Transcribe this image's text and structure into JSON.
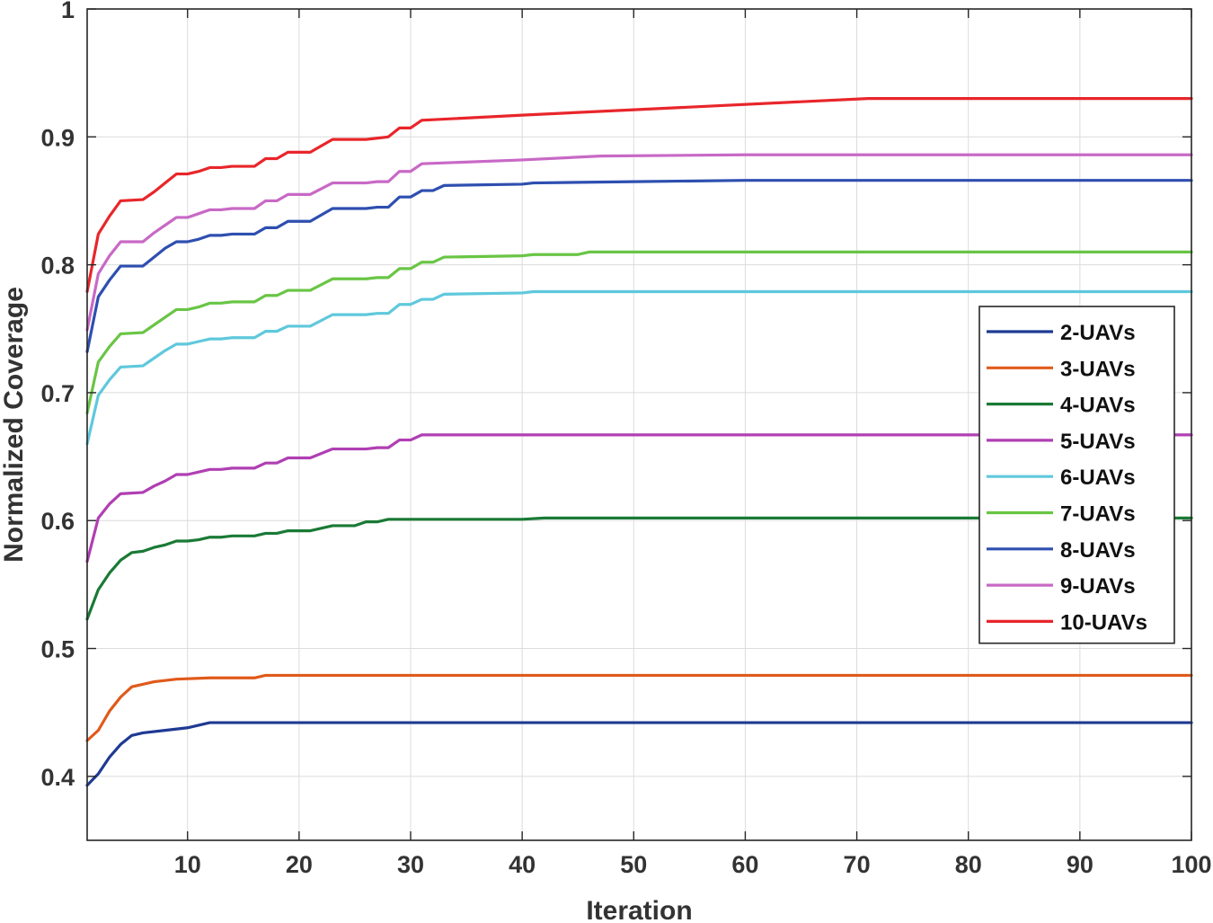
{
  "chart_data": {
    "type": "line",
    "title": "",
    "xlabel": "Iteration",
    "ylabel": "Normalized Coverage",
    "xlim": [
      1,
      100
    ],
    "ylim": [
      0.35,
      1.0
    ],
    "xticks": [
      10,
      20,
      30,
      40,
      50,
      60,
      70,
      80,
      90,
      100
    ],
    "yticks": [
      0.4,
      0.5,
      0.6,
      0.7,
      0.8,
      0.9,
      1
    ],
    "ytick_labels": [
      "0.4",
      "0.5",
      "0.6",
      "0.7",
      "0.8",
      "0.9",
      "1"
    ],
    "grid": true,
    "legend_position": "right",
    "series": [
      {
        "name": "2-UAVs",
        "color": "#1f3a93",
        "points": [
          [
            1,
            0.393
          ],
          [
            2,
            0.402
          ],
          [
            3,
            0.415
          ],
          [
            4,
            0.425
          ],
          [
            5,
            0.432
          ],
          [
            6,
            0.434
          ],
          [
            8,
            0.436
          ],
          [
            10,
            0.438
          ],
          [
            11,
            0.44
          ],
          [
            12,
            0.442
          ],
          [
            30,
            0.442
          ],
          [
            100,
            0.442
          ]
        ]
      },
      {
        "name": "3-UAVs",
        "color": "#e05a1b",
        "points": [
          [
            1,
            0.428
          ],
          [
            2,
            0.436
          ],
          [
            3,
            0.451
          ],
          [
            4,
            0.462
          ],
          [
            5,
            0.47
          ],
          [
            7,
            0.474
          ],
          [
            9,
            0.476
          ],
          [
            12,
            0.477
          ],
          [
            16,
            0.477
          ],
          [
            17,
            0.479
          ],
          [
            100,
            0.479
          ]
        ]
      },
      {
        "name": "4-UAVs",
        "color": "#1a7a35",
        "points": [
          [
            1,
            0.523
          ],
          [
            2,
            0.546
          ],
          [
            3,
            0.559
          ],
          [
            4,
            0.569
          ],
          [
            5,
            0.575
          ],
          [
            6,
            0.576
          ],
          [
            7,
            0.579
          ],
          [
            8,
            0.581
          ],
          [
            9,
            0.584
          ],
          [
            10,
            0.584
          ],
          [
            11,
            0.585
          ],
          [
            12,
            0.587
          ],
          [
            13,
            0.587
          ],
          [
            14,
            0.588
          ],
          [
            16,
            0.588
          ],
          [
            17,
            0.59
          ],
          [
            18,
            0.59
          ],
          [
            19,
            0.592
          ],
          [
            21,
            0.592
          ],
          [
            23,
            0.596
          ],
          [
            25,
            0.596
          ],
          [
            26,
            0.599
          ],
          [
            27,
            0.599
          ],
          [
            28,
            0.601
          ],
          [
            40,
            0.601
          ],
          [
            42,
            0.602
          ],
          [
            100,
            0.602
          ]
        ]
      },
      {
        "name": "5-UAVs",
        "color": "#b03fb3",
        "points": [
          [
            1,
            0.568
          ],
          [
            2,
            0.602
          ],
          [
            3,
            0.613
          ],
          [
            4,
            0.621
          ],
          [
            6,
            0.622
          ],
          [
            7,
            0.627
          ],
          [
            8,
            0.631
          ],
          [
            9,
            0.636
          ],
          [
            10,
            0.636
          ],
          [
            11,
            0.638
          ],
          [
            12,
            0.64
          ],
          [
            13,
            0.64
          ],
          [
            14,
            0.641
          ],
          [
            16,
            0.641
          ],
          [
            17,
            0.645
          ],
          [
            18,
            0.645
          ],
          [
            19,
            0.649
          ],
          [
            21,
            0.649
          ],
          [
            23,
            0.656
          ],
          [
            26,
            0.656
          ],
          [
            27,
            0.657
          ],
          [
            28,
            0.657
          ],
          [
            29,
            0.663
          ],
          [
            30,
            0.663
          ],
          [
            31,
            0.667
          ],
          [
            100,
            0.667
          ]
        ]
      },
      {
        "name": "6-UAVs",
        "color": "#5fc8dc",
        "points": [
          [
            1,
            0.66
          ],
          [
            2,
            0.698
          ],
          [
            3,
            0.71
          ],
          [
            4,
            0.72
          ],
          [
            6,
            0.721
          ],
          [
            7,
            0.727
          ],
          [
            8,
            0.733
          ],
          [
            9,
            0.738
          ],
          [
            10,
            0.738
          ],
          [
            11,
            0.74
          ],
          [
            12,
            0.742
          ],
          [
            13,
            0.742
          ],
          [
            14,
            0.743
          ],
          [
            16,
            0.743
          ],
          [
            17,
            0.748
          ],
          [
            18,
            0.748
          ],
          [
            19,
            0.752
          ],
          [
            21,
            0.752
          ],
          [
            23,
            0.761
          ],
          [
            26,
            0.761
          ],
          [
            27,
            0.762
          ],
          [
            28,
            0.762
          ],
          [
            29,
            0.769
          ],
          [
            30,
            0.769
          ],
          [
            31,
            0.773
          ],
          [
            32,
            0.773
          ],
          [
            33,
            0.777
          ],
          [
            40,
            0.778
          ],
          [
            41,
            0.779
          ],
          [
            100,
            0.779
          ]
        ]
      },
      {
        "name": "7-UAVs",
        "color": "#69c545",
        "points": [
          [
            1,
            0.684
          ],
          [
            2,
            0.724
          ],
          [
            3,
            0.736
          ],
          [
            4,
            0.746
          ],
          [
            6,
            0.747
          ],
          [
            7,
            0.753
          ],
          [
            8,
            0.759
          ],
          [
            9,
            0.765
          ],
          [
            10,
            0.765
          ],
          [
            11,
            0.767
          ],
          [
            12,
            0.77
          ],
          [
            13,
            0.77
          ],
          [
            14,
            0.771
          ],
          [
            16,
            0.771
          ],
          [
            17,
            0.776
          ],
          [
            18,
            0.776
          ],
          [
            19,
            0.78
          ],
          [
            21,
            0.78
          ],
          [
            23,
            0.789
          ],
          [
            26,
            0.789
          ],
          [
            27,
            0.79
          ],
          [
            28,
            0.79
          ],
          [
            29,
            0.797
          ],
          [
            30,
            0.797
          ],
          [
            31,
            0.802
          ],
          [
            32,
            0.802
          ],
          [
            33,
            0.806
          ],
          [
            40,
            0.807
          ],
          [
            41,
            0.808
          ],
          [
            45,
            0.808
          ],
          [
            46,
            0.81
          ],
          [
            100,
            0.81
          ]
        ]
      },
      {
        "name": "8-UAVs",
        "color": "#2e4fb0",
        "points": [
          [
            1,
            0.732
          ],
          [
            2,
            0.775
          ],
          [
            3,
            0.788
          ],
          [
            4,
            0.799
          ],
          [
            6,
            0.799
          ],
          [
            7,
            0.806
          ],
          [
            8,
            0.813
          ],
          [
            9,
            0.818
          ],
          [
            10,
            0.818
          ],
          [
            11,
            0.82
          ],
          [
            12,
            0.823
          ],
          [
            13,
            0.823
          ],
          [
            14,
            0.824
          ],
          [
            16,
            0.824
          ],
          [
            17,
            0.829
          ],
          [
            18,
            0.829
          ],
          [
            19,
            0.834
          ],
          [
            21,
            0.834
          ],
          [
            23,
            0.844
          ],
          [
            26,
            0.844
          ],
          [
            27,
            0.845
          ],
          [
            28,
            0.845
          ],
          [
            29,
            0.853
          ],
          [
            30,
            0.853
          ],
          [
            31,
            0.858
          ],
          [
            32,
            0.858
          ],
          [
            33,
            0.862
          ],
          [
            40,
            0.863
          ],
          [
            41,
            0.864
          ],
          [
            50,
            0.865
          ],
          [
            60,
            0.866
          ],
          [
            100,
            0.866
          ]
        ]
      },
      {
        "name": "9-UAVs",
        "color": "#c869c6",
        "points": [
          [
            1,
            0.749
          ],
          [
            2,
            0.793
          ],
          [
            3,
            0.807
          ],
          [
            4,
            0.818
          ],
          [
            6,
            0.818
          ],
          [
            7,
            0.825
          ],
          [
            8,
            0.831
          ],
          [
            9,
            0.837
          ],
          [
            10,
            0.837
          ],
          [
            11,
            0.84
          ],
          [
            12,
            0.843
          ],
          [
            13,
            0.843
          ],
          [
            14,
            0.844
          ],
          [
            16,
            0.844
          ],
          [
            17,
            0.85
          ],
          [
            18,
            0.85
          ],
          [
            19,
            0.855
          ],
          [
            21,
            0.855
          ],
          [
            23,
            0.864
          ],
          [
            26,
            0.864
          ],
          [
            27,
            0.865
          ],
          [
            28,
            0.865
          ],
          [
            29,
            0.873
          ],
          [
            30,
            0.873
          ],
          [
            31,
            0.879
          ],
          [
            40,
            0.882
          ],
          [
            47,
            0.885
          ],
          [
            60,
            0.886
          ],
          [
            100,
            0.886
          ]
        ]
      },
      {
        "name": "10-UAVs",
        "color": "#e8262b",
        "points": [
          [
            1,
            0.779
          ],
          [
            2,
            0.824
          ],
          [
            3,
            0.838
          ],
          [
            4,
            0.85
          ],
          [
            6,
            0.851
          ],
          [
            7,
            0.857
          ],
          [
            8,
            0.864
          ],
          [
            9,
            0.871
          ],
          [
            10,
            0.871
          ],
          [
            11,
            0.873
          ],
          [
            12,
            0.876
          ],
          [
            13,
            0.876
          ],
          [
            14,
            0.877
          ],
          [
            16,
            0.877
          ],
          [
            17,
            0.883
          ],
          [
            18,
            0.883
          ],
          [
            19,
            0.888
          ],
          [
            21,
            0.888
          ],
          [
            23,
            0.898
          ],
          [
            26,
            0.898
          ],
          [
            27,
            0.899
          ],
          [
            28,
            0.9
          ],
          [
            29,
            0.907
          ],
          [
            30,
            0.907
          ],
          [
            31,
            0.913
          ],
          [
            40,
            0.917
          ],
          [
            71,
            0.93
          ],
          [
            100,
            0.93
          ]
        ]
      }
    ]
  }
}
